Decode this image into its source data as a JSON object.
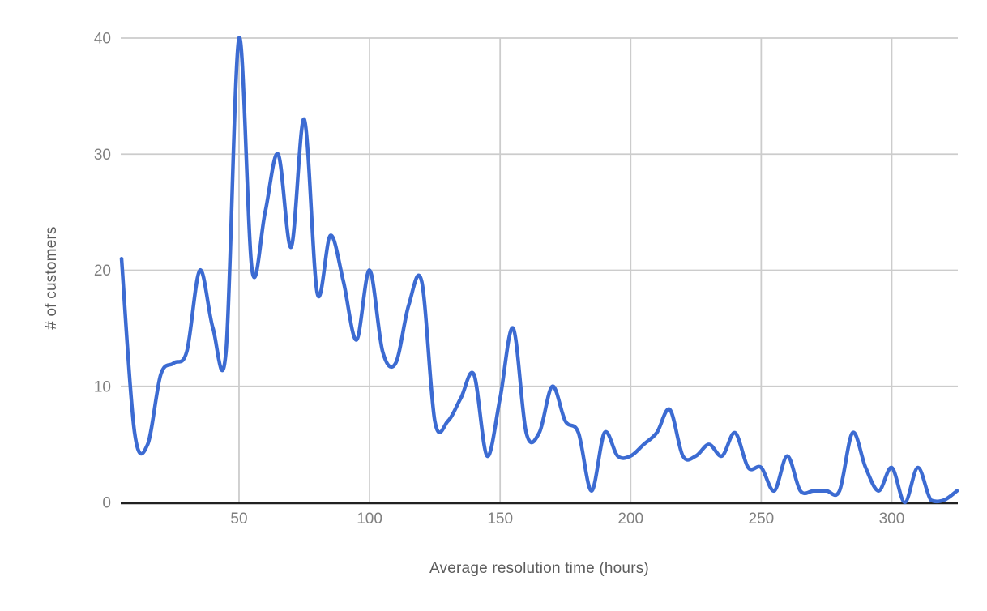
{
  "chart_data": {
    "type": "line",
    "title": "",
    "xlabel": "Average resolution time (hours)",
    "ylabel": "# of customers",
    "x": [
      5,
      10,
      15,
      20,
      25,
      30,
      35,
      40,
      45,
      50,
      55,
      60,
      65,
      70,
      75,
      80,
      85,
      90,
      95,
      100,
      105,
      110,
      115,
      120,
      125,
      130,
      135,
      140,
      145,
      150,
      155,
      160,
      165,
      170,
      175,
      180,
      185,
      190,
      195,
      200,
      205,
      210,
      215,
      220,
      225,
      230,
      235,
      240,
      245,
      250,
      255,
      260,
      265,
      270,
      275,
      280,
      285,
      290,
      295,
      300,
      305,
      310,
      315,
      320,
      325
    ],
    "series": [
      {
        "name": "# of customers",
        "color": "#3c6bd2",
        "values": [
          21,
          6,
          5,
          11,
          12,
          13,
          20,
          15,
          13,
          40,
          20,
          25,
          30,
          22,
          33,
          18,
          23,
          19,
          14,
          20,
          13,
          12,
          17,
          19,
          7,
          7,
          9,
          11,
          4,
          9,
          15,
          6,
          6,
          10,
          7,
          6,
          1,
          6,
          4,
          4,
          5,
          6,
          8,
          4,
          4,
          5,
          4,
          6,
          3,
          3,
          1,
          4,
          1,
          1,
          1,
          1,
          6,
          3,
          1,
          3,
          0,
          3,
          0.2,
          0.2,
          1
        ]
      }
    ],
    "x_ticks": [
      50,
      100,
      150,
      200,
      250,
      300
    ],
    "y_ticks": [
      0,
      10,
      20,
      30,
      40
    ],
    "xlim": [
      5,
      325
    ],
    "ylim": [
      0,
      40
    ],
    "grid": true,
    "smooth": true,
    "legend": "none",
    "colors": {
      "background": "#ffffff",
      "gridline": "#cccccc",
      "axis_line": "#212121",
      "tick_label": "#7f7f7f",
      "axis_title": "#5c5c5c"
    }
  }
}
